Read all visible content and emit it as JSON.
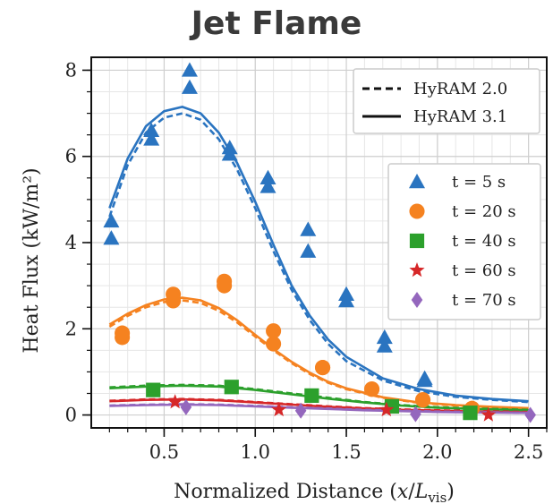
{
  "title": "Jet Flame",
  "chart_data": {
    "type": "scatter",
    "title": "Jet Flame",
    "xlabel": "Normalized Distance (x/L_vis)",
    "xlabel_parts": {
      "prefix": "Normalized Distance (",
      "x": "x",
      "slash": "/",
      "L": "L",
      "sub": "vis",
      "suffix": ")"
    },
    "ylabel": "Heat Flux (kW/m²)",
    "xlim": [
      0.1,
      2.6
    ],
    "ylim": [
      -0.3,
      8.3
    ],
    "xticks": [
      0.5,
      1.0,
      1.5,
      2.0,
      2.5
    ],
    "xtick_labels": [
      "0.5",
      "1.0",
      "1.5",
      "2.0",
      "2.5"
    ],
    "yticks": [
      0,
      2,
      4,
      6,
      8
    ],
    "ytick_labels": [
      "0",
      "2",
      "4",
      "6",
      "8"
    ],
    "grid": true,
    "legend_models": {
      "placement": "top-right",
      "entries": [
        {
          "label": "HyRAM 2.0",
          "style": "dashed"
        },
        {
          "label": "HyRAM 3.1",
          "style": "solid"
        }
      ]
    },
    "legend_times": {
      "placement": "right",
      "entries": [
        {
          "label": "t = 5 s",
          "marker": "triangle",
          "color": "#2a74c0"
        },
        {
          "label": "t = 20 s",
          "marker": "circle",
          "color": "#f58220"
        },
        {
          "label": "t = 40 s",
          "marker": "square",
          "color": "#2ca02c"
        },
        {
          "label": "t = 60 s",
          "marker": "star",
          "color": "#d62728"
        },
        {
          "label": "t = 70 s",
          "marker": "diamond",
          "color": "#9467bd"
        }
      ]
    },
    "series": [
      {
        "name": "t = 5 s",
        "color": "#2a74c0",
        "marker": "triangle",
        "points": [
          [
            0.21,
            4.5
          ],
          [
            0.21,
            4.1
          ],
          [
            0.43,
            6.6
          ],
          [
            0.43,
            6.4
          ],
          [
            0.64,
            8.0
          ],
          [
            0.64,
            7.6
          ],
          [
            0.86,
            6.2
          ],
          [
            0.86,
            6.05
          ],
          [
            1.07,
            5.5
          ],
          [
            1.07,
            5.3
          ],
          [
            1.29,
            4.3
          ],
          [
            1.29,
            3.8
          ],
          [
            1.5,
            2.8
          ],
          [
            1.5,
            2.65
          ],
          [
            1.71,
            1.8
          ],
          [
            1.71,
            1.6
          ],
          [
            1.93,
            0.85
          ],
          [
            1.93,
            0.8
          ]
        ],
        "model_2_0": [
          [
            0.2,
            4.6
          ],
          [
            0.3,
            5.8
          ],
          [
            0.4,
            6.55
          ],
          [
            0.5,
            6.9
          ],
          [
            0.6,
            7.0
          ],
          [
            0.7,
            6.85
          ],
          [
            0.8,
            6.4
          ],
          [
            0.9,
            5.7
          ],
          [
            1.0,
            4.8
          ],
          [
            1.1,
            3.8
          ],
          [
            1.2,
            2.9
          ],
          [
            1.3,
            2.2
          ],
          [
            1.4,
            1.65
          ],
          [
            1.5,
            1.25
          ],
          [
            1.7,
            0.8
          ],
          [
            1.9,
            0.55
          ],
          [
            2.1,
            0.42
          ],
          [
            2.3,
            0.35
          ],
          [
            2.5,
            0.3
          ]
        ],
        "model_3_1": [
          [
            0.2,
            4.8
          ],
          [
            0.3,
            5.95
          ],
          [
            0.4,
            6.7
          ],
          [
            0.5,
            7.05
          ],
          [
            0.6,
            7.15
          ],
          [
            0.7,
            7.0
          ],
          [
            0.8,
            6.55
          ],
          [
            0.9,
            5.85
          ],
          [
            1.0,
            4.95
          ],
          [
            1.1,
            3.95
          ],
          [
            1.2,
            3.0
          ],
          [
            1.3,
            2.3
          ],
          [
            1.4,
            1.75
          ],
          [
            1.5,
            1.35
          ],
          [
            1.7,
            0.85
          ],
          [
            1.9,
            0.6
          ],
          [
            2.1,
            0.45
          ],
          [
            2.3,
            0.37
          ],
          [
            2.5,
            0.32
          ]
        ]
      },
      {
        "name": "t = 20 s",
        "color": "#f58220",
        "marker": "circle",
        "points": [
          [
            0.27,
            1.9
          ],
          [
            0.27,
            1.8
          ],
          [
            0.55,
            2.8
          ],
          [
            0.55,
            2.65
          ],
          [
            0.83,
            3.1
          ],
          [
            0.83,
            3.0
          ],
          [
            1.1,
            1.95
          ],
          [
            1.1,
            1.65
          ],
          [
            1.37,
            1.1
          ],
          [
            1.37,
            1.1
          ],
          [
            1.64,
            0.6
          ],
          [
            1.64,
            0.6
          ],
          [
            1.92,
            0.35
          ],
          [
            1.92,
            0.35
          ],
          [
            2.19,
            0.15
          ],
          [
            2.19,
            0.15
          ]
        ],
        "model_2_0": [
          [
            0.2,
            2.05
          ],
          [
            0.3,
            2.3
          ],
          [
            0.4,
            2.5
          ],
          [
            0.5,
            2.62
          ],
          [
            0.6,
            2.66
          ],
          [
            0.7,
            2.6
          ],
          [
            0.8,
            2.42
          ],
          [
            0.9,
            2.15
          ],
          [
            1.0,
            1.82
          ],
          [
            1.1,
            1.5
          ],
          [
            1.2,
            1.2
          ],
          [
            1.3,
            0.95
          ],
          [
            1.4,
            0.75
          ],
          [
            1.5,
            0.6
          ],
          [
            1.7,
            0.4
          ],
          [
            1.9,
            0.28
          ],
          [
            2.1,
            0.22
          ],
          [
            2.3,
            0.18
          ],
          [
            2.5,
            0.15
          ]
        ],
        "model_3_1": [
          [
            0.2,
            2.1
          ],
          [
            0.3,
            2.35
          ],
          [
            0.4,
            2.55
          ],
          [
            0.5,
            2.68
          ],
          [
            0.6,
            2.72
          ],
          [
            0.7,
            2.66
          ],
          [
            0.8,
            2.48
          ],
          [
            0.9,
            2.2
          ],
          [
            1.0,
            1.86
          ],
          [
            1.1,
            1.53
          ],
          [
            1.2,
            1.23
          ],
          [
            1.3,
            0.98
          ],
          [
            1.4,
            0.77
          ],
          [
            1.5,
            0.62
          ],
          [
            1.7,
            0.41
          ],
          [
            1.9,
            0.29
          ],
          [
            2.1,
            0.23
          ],
          [
            2.3,
            0.19
          ],
          [
            2.5,
            0.16
          ]
        ]
      },
      {
        "name": "t = 40 s",
        "color": "#2ca02c",
        "marker": "square",
        "points": [
          [
            0.44,
            0.58
          ],
          [
            0.87,
            0.65
          ],
          [
            1.31,
            0.45
          ],
          [
            1.75,
            0.2
          ],
          [
            2.18,
            0.05
          ]
        ],
        "model_2_0": [
          [
            0.2,
            0.64
          ],
          [
            0.4,
            0.68
          ],
          [
            0.6,
            0.7
          ],
          [
            0.8,
            0.68
          ],
          [
            1.0,
            0.6
          ],
          [
            1.2,
            0.5
          ],
          [
            1.4,
            0.4
          ],
          [
            1.6,
            0.3
          ],
          [
            1.8,
            0.23
          ],
          [
            2.0,
            0.18
          ],
          [
            2.2,
            0.15
          ],
          [
            2.5,
            0.12
          ]
        ],
        "model_3_1": [
          [
            0.2,
            0.62
          ],
          [
            0.4,
            0.66
          ],
          [
            0.6,
            0.68
          ],
          [
            0.8,
            0.66
          ],
          [
            1.0,
            0.58
          ],
          [
            1.2,
            0.48
          ],
          [
            1.4,
            0.38
          ],
          [
            1.6,
            0.29
          ],
          [
            1.8,
            0.22
          ],
          [
            2.0,
            0.17
          ],
          [
            2.2,
            0.14
          ],
          [
            2.5,
            0.11
          ]
        ]
      },
      {
        "name": "t = 60 s",
        "color": "#d62728",
        "marker": "star",
        "points": [
          [
            0.56,
            0.3
          ],
          [
            1.13,
            0.12
          ],
          [
            1.72,
            0.12
          ],
          [
            2.28,
            0.0
          ]
        ],
        "model_2_0": [
          [
            0.2,
            0.33
          ],
          [
            0.4,
            0.36
          ],
          [
            0.6,
            0.37
          ],
          [
            0.8,
            0.35
          ],
          [
            1.0,
            0.3
          ],
          [
            1.2,
            0.25
          ],
          [
            1.4,
            0.2
          ],
          [
            1.6,
            0.16
          ],
          [
            1.8,
            0.13
          ],
          [
            2.0,
            0.11
          ],
          [
            2.2,
            0.09
          ],
          [
            2.5,
            0.07
          ]
        ],
        "model_3_1": [
          [
            0.2,
            0.32
          ],
          [
            0.4,
            0.35
          ],
          [
            0.6,
            0.36
          ],
          [
            0.8,
            0.34
          ],
          [
            1.0,
            0.29
          ],
          [
            1.2,
            0.24
          ],
          [
            1.4,
            0.19
          ],
          [
            1.6,
            0.15
          ],
          [
            1.8,
            0.12
          ],
          [
            2.0,
            0.1
          ],
          [
            2.2,
            0.08
          ],
          [
            2.5,
            0.06
          ]
        ]
      },
      {
        "name": "t = 70 s",
        "color": "#9467bd",
        "marker": "diamond",
        "points": [
          [
            0.62,
            0.18
          ],
          [
            1.25,
            0.1
          ],
          [
            1.88,
            0.02
          ],
          [
            2.51,
            0.0
          ]
        ],
        "model_2_0": [
          [
            0.2,
            0.22
          ],
          [
            0.4,
            0.24
          ],
          [
            0.6,
            0.25
          ],
          [
            0.8,
            0.24
          ],
          [
            1.0,
            0.21
          ],
          [
            1.2,
            0.18
          ],
          [
            1.4,
            0.15
          ],
          [
            1.6,
            0.12
          ],
          [
            1.8,
            0.1
          ],
          [
            2.0,
            0.08
          ],
          [
            2.2,
            0.07
          ],
          [
            2.5,
            0.05
          ]
        ],
        "model_3_1": [
          [
            0.2,
            0.21
          ],
          [
            0.4,
            0.23
          ],
          [
            0.6,
            0.24
          ],
          [
            0.8,
            0.23
          ],
          [
            1.0,
            0.2
          ],
          [
            1.2,
            0.17
          ],
          [
            1.4,
            0.14
          ],
          [
            1.6,
            0.11
          ],
          [
            1.8,
            0.09
          ],
          [
            2.0,
            0.07
          ],
          [
            2.2,
            0.06
          ],
          [
            2.5,
            0.05
          ]
        ]
      }
    ]
  }
}
